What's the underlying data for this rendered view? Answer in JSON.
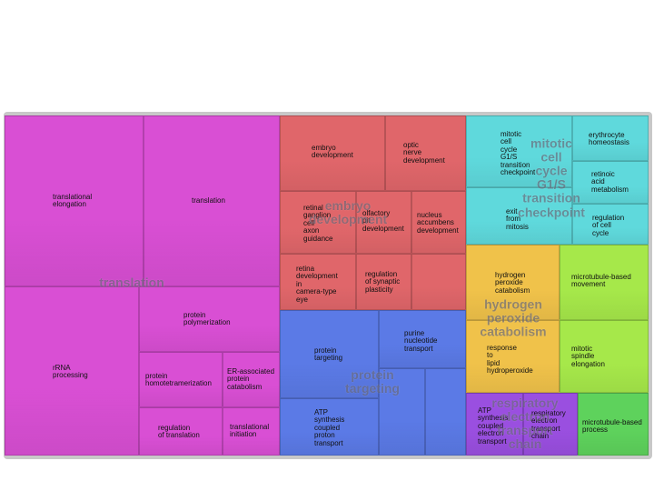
{
  "chart_data": {
    "type": "treemap",
    "groups": [
      {
        "name": "translation",
        "color": "#d94fd4",
        "terms": [
          {
            "label": "translational\nelongation"
          },
          {
            "label": "translation"
          },
          {
            "label": "rRNA\nprocessing"
          },
          {
            "label": "protein\npolymerization"
          },
          {
            "label": "protein\nhomotetramerization"
          },
          {
            "label": "ER-associated\nprotein\ncatabolism"
          },
          {
            "label": "regulation\nof translation"
          },
          {
            "label": "translational\ninitiation"
          }
        ]
      },
      {
        "name": "embryo\ndevelopment",
        "color": "#e0666a",
        "terms": [
          {
            "label": "embryo\ndevelopment"
          },
          {
            "label": "optic\nnerve\ndevelopment"
          },
          {
            "label": "retinal\nganglion\ncell\naxon\nguidance"
          },
          {
            "label": "olfactory\npit\ndevelopment"
          },
          {
            "label": "nucleus\naccumbens\ndevelopment"
          },
          {
            "label": "retina\ndevelopment\nin\ncamera-type\neye"
          },
          {
            "label": "regulation\nof synaptic\nplasticity"
          },
          {
            "label": ""
          }
        ]
      },
      {
        "name": "protein\ntargeting",
        "color": "#5b7ae6",
        "terms": [
          {
            "label": "protein\ntargeting"
          },
          {
            "label": "purine\nnucleotide\ntransport"
          },
          {
            "label": "ATP\nsynthesis\ncoupled\nproton\ntransport"
          },
          {
            "label": ""
          },
          {
            "label": ""
          }
        ]
      },
      {
        "name": "mitotic\ncell\ncycle\nG1/S\ntransition\ncheckpoint",
        "color": "#5fd9dc",
        "terms": [
          {
            "label": "mitotic\ncell\ncycle\nG1/S\ntransition\ncheckpoint"
          },
          {
            "label": "erythrocyte\nhomeostasis"
          },
          {
            "label": "retinoic\nacid\nmetabolism"
          },
          {
            "label": "exit\nfrom\nmitosis"
          },
          {
            "label": "regulation\nof cell\ncycle"
          }
        ]
      },
      {
        "name": "hydrogen\nperoxide\ncatabolism",
        "color": "#f0c24a",
        "terms": [
          {
            "label": "hydrogen\nperoxide\ncatabolism"
          },
          {
            "label": "response\nto\nlipid\nhydroperoxide"
          }
        ]
      },
      {
        "name": "",
        "color": "#a6e84a",
        "terms": [
          {
            "label": "microtubule-based\nmovement"
          },
          {
            "label": "mitotic\nspindle\nelongation"
          }
        ]
      },
      {
        "name": "respiratory\nelectron\ntransport\nchain",
        "color": "#9a4fe0",
        "terms": [
          {
            "label": "ATP\nsynthesis\ncoupled\nelectron\ntransport"
          },
          {
            "label": "respiratory\nelectron\ntransport\nchain"
          }
        ]
      },
      {
        "name": "",
        "color": "#5ed25c",
        "terms": [
          {
            "label": "microtubule-based\nprocess"
          }
        ]
      }
    ]
  }
}
